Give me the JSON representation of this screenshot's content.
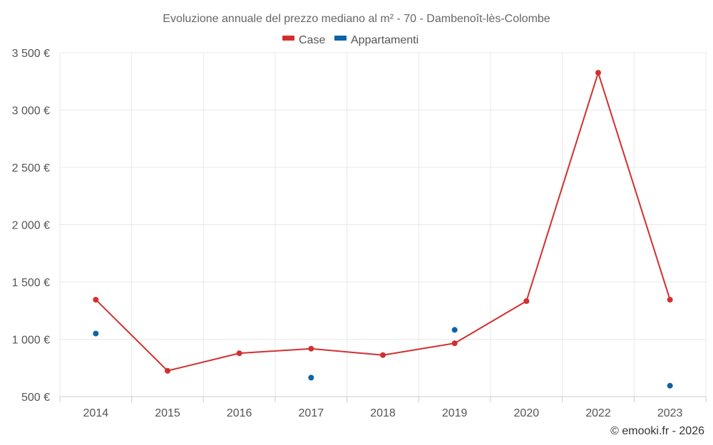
{
  "chart_data": {
    "type": "line",
    "title": "Evoluzione annuale del prezzo mediano al m² - 70 - Dambenoît-lès-Colombe",
    "categories": [
      "2014",
      "2015",
      "2016",
      "2017",
      "2018",
      "2019",
      "2020",
      "2022",
      "2023"
    ],
    "series": [
      {
        "name": "Case",
        "color": "#d32f2f",
        "style": "line",
        "values": [
          1345,
          725,
          878,
          918,
          862,
          965,
          1333,
          3325,
          1345
        ]
      },
      {
        "name": "Appartamenti",
        "color": "#0d63a5",
        "style": "markers",
        "values": [
          1050,
          null,
          null,
          665,
          null,
          1082,
          null,
          null,
          595
        ]
      }
    ],
    "ylim": [
      500,
      3500
    ],
    "yticks": [
      500,
      1000,
      1500,
      2000,
      2500,
      3000,
      3500
    ],
    "ytick_labels": [
      "500 €",
      "1 000 €",
      "1 500 €",
      "2 000 €",
      "2 500 €",
      "3 000 €",
      "3 500 €"
    ],
    "xlabel": "",
    "ylabel": "",
    "grid": true,
    "legend_position": "top-center"
  },
  "credit": "© emooki.fr - 2026"
}
